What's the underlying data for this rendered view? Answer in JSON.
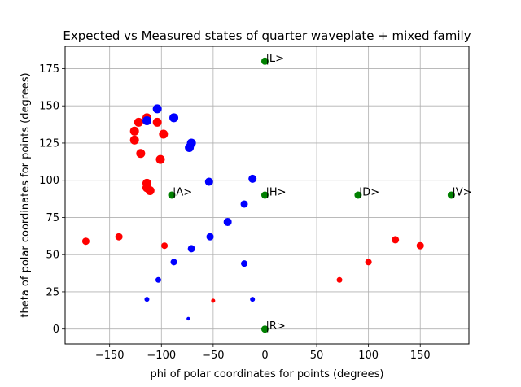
{
  "chart_data": {
    "type": "scatter",
    "title": "Expected vs Measured states of quarter waveplate + mixed family",
    "xlabel": "phi of polar coordinates for points (degrees)",
    "ylabel": "theta of polar coordinates for points (degrees)",
    "xlim": [
      -193,
      197
    ],
    "ylim": [
      -10,
      190
    ],
    "xticks": [
      -150,
      -100,
      -50,
      0,
      50,
      100,
      150
    ],
    "yticks": [
      0,
      25,
      50,
      75,
      100,
      125,
      150,
      175
    ],
    "grid": true,
    "colors": {
      "red": "#ff0000",
      "blue": "#0000ff",
      "green": "#008000"
    },
    "series": [
      {
        "color": "red",
        "points": [
          {
            "x": -173,
            "y": 59,
            "size": 4.5
          },
          {
            "x": -141,
            "y": 62,
            "size": 4.5
          },
          {
            "x": -126,
            "y": 133,
            "size": 5.5
          },
          {
            "x": -126,
            "y": 127,
            "size": 5.5
          },
          {
            "x": -122,
            "y": 139,
            "size": 5.5
          },
          {
            "x": -120,
            "y": 118,
            "size": 5.5
          },
          {
            "x": -114,
            "y": 142,
            "size": 5.5
          },
          {
            "x": -114,
            "y": 98,
            "size": 5.5
          },
          {
            "x": -114,
            "y": 95,
            "size": 5.5
          },
          {
            "x": -111,
            "y": 93,
            "size": 5.5
          },
          {
            "x": -104,
            "y": 139,
            "size": 5.5
          },
          {
            "x": -101,
            "y": 114,
            "size": 5.5
          },
          {
            "x": -98,
            "y": 131,
            "size": 5.5
          },
          {
            "x": -97,
            "y": 56,
            "size": 4
          },
          {
            "x": -50,
            "y": 19,
            "size": 2.5
          },
          {
            "x": 72,
            "y": 33,
            "size": 3.5
          },
          {
            "x": 100,
            "y": 45,
            "size": 4
          },
          {
            "x": 126,
            "y": 60,
            "size": 4.5
          },
          {
            "x": 150,
            "y": 56,
            "size": 4.5
          }
        ]
      },
      {
        "color": "blue",
        "points": [
          {
            "x": -114,
            "y": 140,
            "size": 5.5
          },
          {
            "x": -104,
            "y": 148,
            "size": 5.5
          },
          {
            "x": -88,
            "y": 142,
            "size": 5.5
          },
          {
            "x": -73,
            "y": 122,
            "size": 5.5
          },
          {
            "x": -71,
            "y": 125,
            "size": 5.5
          },
          {
            "x": -54,
            "y": 99,
            "size": 5
          },
          {
            "x": -12,
            "y": 101,
            "size": 5
          },
          {
            "x": -20,
            "y": 84,
            "size": 4.5
          },
          {
            "x": -36,
            "y": 72,
            "size": 5
          },
          {
            "x": -53,
            "y": 62,
            "size": 4.5
          },
          {
            "x": -71,
            "y": 54,
            "size": 4.5
          },
          {
            "x": -88,
            "y": 45,
            "size": 4
          },
          {
            "x": -20,
            "y": 44,
            "size": 4
          },
          {
            "x": -103,
            "y": 33,
            "size": 3.5
          },
          {
            "x": -114,
            "y": 20,
            "size": 3
          },
          {
            "x": -12,
            "y": 20,
            "size": 3
          },
          {
            "x": -74,
            "y": 7,
            "size": 2.2
          }
        ]
      },
      {
        "color": "green",
        "points": [
          {
            "x": 0,
            "y": 180,
            "size": 4.5,
            "label": "|L>"
          },
          {
            "x": -90,
            "y": 90,
            "size": 4.5,
            "label": "|A>"
          },
          {
            "x": 0,
            "y": 90,
            "size": 4.5,
            "label": "|H>"
          },
          {
            "x": 90,
            "y": 90,
            "size": 4.5,
            "label": "|D>"
          },
          {
            "x": 180,
            "y": 90,
            "size": 4.5,
            "label": "|V>"
          },
          {
            "x": 0,
            "y": 0,
            "size": 4.5,
            "label": "|R>"
          }
        ]
      }
    ]
  }
}
